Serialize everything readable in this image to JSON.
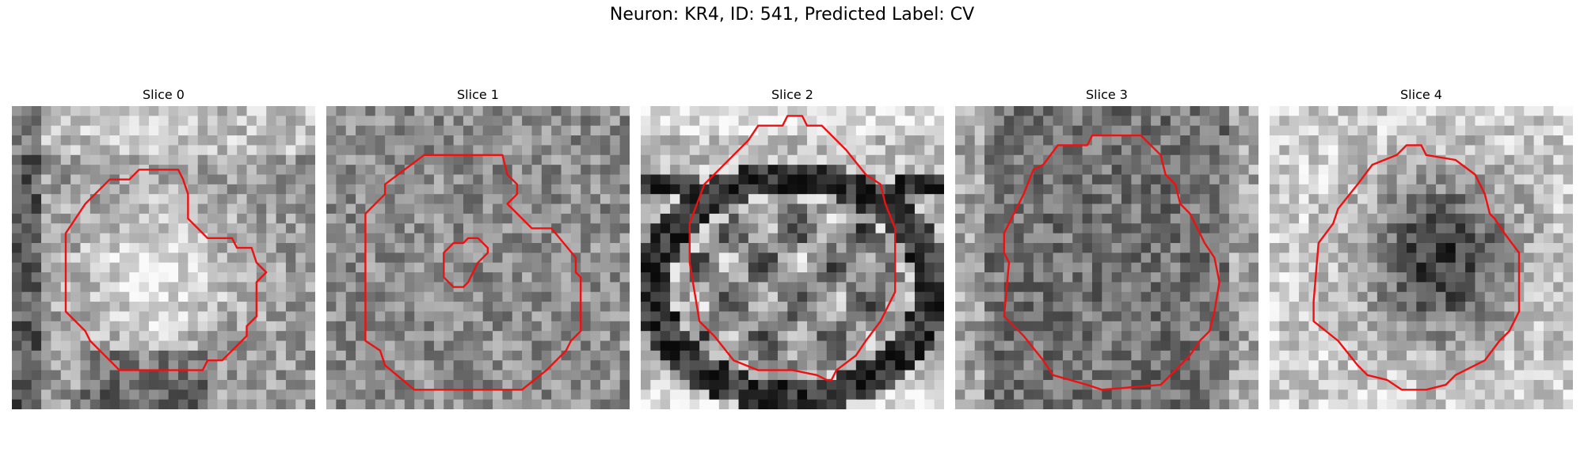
{
  "figure": {
    "title": "Neuron: KR4, ID: 541, Predicted Label: CV"
  },
  "panels": [
    {
      "title": "Slice 0"
    },
    {
      "title": "Slice 1"
    },
    {
      "title": "Slice 2"
    },
    {
      "title": "Slice 3"
    },
    {
      "title": "Slice 4"
    }
  ],
  "colors": {
    "outline": "#ee1111",
    "background": "#ffffff"
  }
}
